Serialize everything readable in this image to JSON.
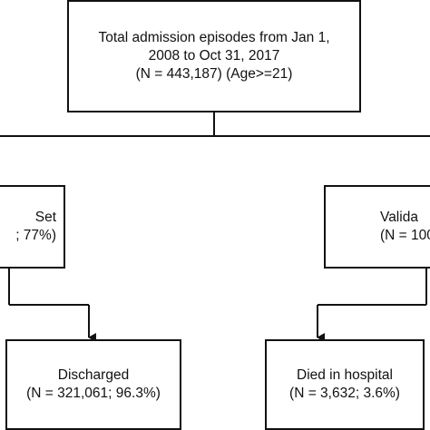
{
  "flowchart": {
    "top_box": {
      "line1": "Total admission episodes from Jan 1,",
      "line2": "2008 to Oct 31, 2017",
      "line3": "(N = 443,187) (Age>=21)"
    },
    "left_box": {
      "line1": "Set",
      "line2": "; 77%)"
    },
    "right_box": {
      "line1": "Valida",
      "line2": "(N = 100,"
    },
    "discharged_box": {
      "line1": "Discharged",
      "line2": "(N = 321,061; 96.3%)"
    },
    "died_box": {
      "line1": "Died in hospital",
      "line2": "(N = 3,632; 3.6%)"
    }
  }
}
